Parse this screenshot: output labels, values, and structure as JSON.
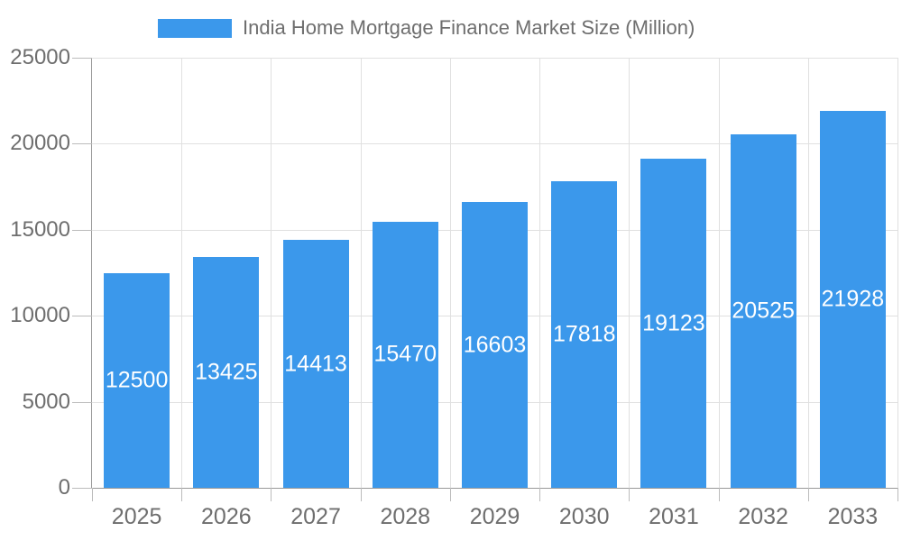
{
  "chart_data": {
    "type": "bar",
    "title": "India Home Mortgage Finance Market Size (Million)",
    "legend": {
      "position": "top",
      "entries": [
        "India Home Mortgage Finance Market Size (Million)"
      ]
    },
    "categories": [
      "2025",
      "2026",
      "2027",
      "2028",
      "2029",
      "2030",
      "2031",
      "2032",
      "2033"
    ],
    "values": [
      12500,
      13425,
      14413,
      15470,
      16603,
      17818,
      19123,
      20525,
      21928
    ],
    "data_labels_visible": true,
    "xlabel": "",
    "ylabel": "",
    "ylim": [
      0,
      25000
    ],
    "yticks": [
      0,
      5000,
      10000,
      15000,
      20000,
      25000
    ],
    "grid": true,
    "colors": {
      "bar": "#3B98EB",
      "bar_value_text": "#FFFFFF",
      "axis_text": "#6E6E6E",
      "axis_line": "#999999",
      "tick_line": "#BBBBBB",
      "grid_line": "#E0E0E0",
      "background": "#FFFFFF"
    }
  }
}
